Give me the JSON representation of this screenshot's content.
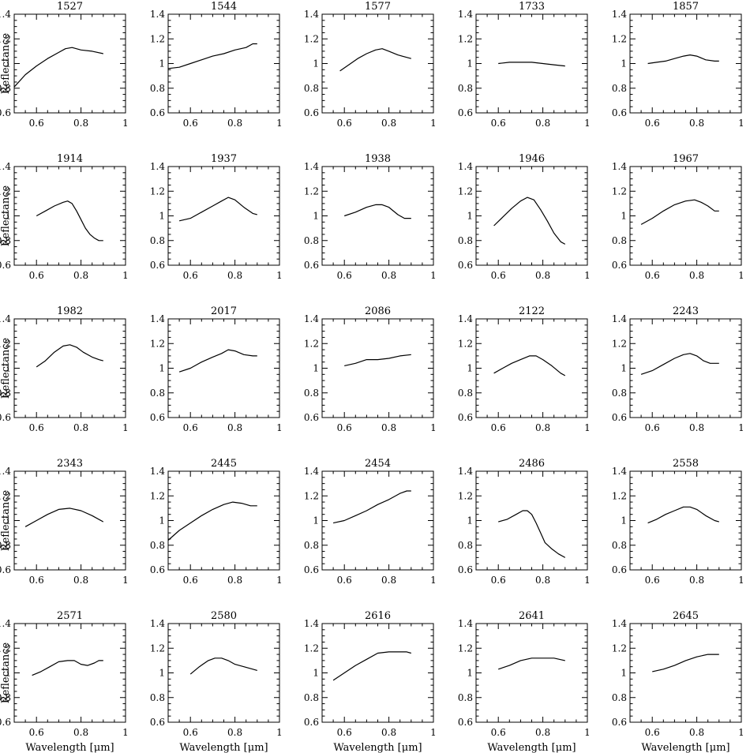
{
  "chart_data": {
    "type": "line",
    "layout": {
      "rows": 5,
      "cols": 5
    },
    "xlabel": "Wavelength [μm]",
    "ylabel": "Reflectance",
    "xlim": [
      0.5,
      1.0
    ],
    "ylim": [
      0.6,
      1.4
    ],
    "xticks": [
      0.6,
      0.8,
      1.0
    ],
    "xtick_labels": [
      "0.6",
      "0.8",
      "1"
    ],
    "yticks": [
      0.6,
      0.8,
      1.0,
      1.2,
      1.4
    ],
    "ytick_labels": [
      "0.6",
      "0.8",
      "1",
      "1.2",
      "1.4"
    ],
    "panels": [
      {
        "title": "1527",
        "x": [
          0.5,
          0.55,
          0.6,
          0.65,
          0.7,
          0.73,
          0.76,
          0.8,
          0.85,
          0.9
        ],
        "y": [
          0.81,
          0.91,
          0.98,
          1.04,
          1.09,
          1.12,
          1.13,
          1.11,
          1.1,
          1.08
        ]
      },
      {
        "title": "1544",
        "x": [
          0.5,
          0.55,
          0.6,
          0.65,
          0.7,
          0.75,
          0.8,
          0.85,
          0.88,
          0.9
        ],
        "y": [
          0.96,
          0.97,
          1.0,
          1.03,
          1.06,
          1.08,
          1.11,
          1.13,
          1.16,
          1.16
        ]
      },
      {
        "title": "1577",
        "x": [
          0.58,
          0.62,
          0.66,
          0.7,
          0.74,
          0.77,
          0.8,
          0.84,
          0.88,
          0.9
        ],
        "y": [
          0.94,
          0.99,
          1.04,
          1.08,
          1.11,
          1.12,
          1.1,
          1.07,
          1.05,
          1.04
        ]
      },
      {
        "title": "1733",
        "x": [
          0.6,
          0.65,
          0.7,
          0.75,
          0.8,
          0.85,
          0.9
        ],
        "y": [
          1.0,
          1.01,
          1.01,
          1.01,
          1.0,
          0.99,
          0.98
        ]
      },
      {
        "title": "1857",
        "x": [
          0.58,
          0.62,
          0.66,
          0.7,
          0.74,
          0.77,
          0.8,
          0.84,
          0.88,
          0.9
        ],
        "y": [
          1.0,
          1.01,
          1.02,
          1.04,
          1.06,
          1.07,
          1.06,
          1.03,
          1.02,
          1.02
        ]
      },
      {
        "title": "1914",
        "x": [
          0.6,
          0.64,
          0.68,
          0.72,
          0.74,
          0.76,
          0.78,
          0.8,
          0.82,
          0.84,
          0.86,
          0.88,
          0.9
        ],
        "y": [
          1.0,
          1.04,
          1.08,
          1.11,
          1.12,
          1.1,
          1.04,
          0.97,
          0.9,
          0.85,
          0.82,
          0.8,
          0.8
        ]
      },
      {
        "title": "1937",
        "x": [
          0.55,
          0.6,
          0.65,
          0.7,
          0.74,
          0.77,
          0.8,
          0.84,
          0.88,
          0.9
        ],
        "y": [
          0.96,
          0.98,
          1.03,
          1.08,
          1.12,
          1.15,
          1.13,
          1.07,
          1.02,
          1.01
        ]
      },
      {
        "title": "1938",
        "x": [
          0.6,
          0.65,
          0.7,
          0.74,
          0.77,
          0.8,
          0.84,
          0.87,
          0.9
        ],
        "y": [
          1.0,
          1.03,
          1.07,
          1.09,
          1.09,
          1.07,
          1.01,
          0.98,
          0.98
        ]
      },
      {
        "title": "1946",
        "x": [
          0.58,
          0.62,
          0.66,
          0.7,
          0.73,
          0.76,
          0.79,
          0.82,
          0.85,
          0.88,
          0.9
        ],
        "y": [
          0.92,
          0.99,
          1.06,
          1.12,
          1.15,
          1.13,
          1.05,
          0.96,
          0.86,
          0.79,
          0.77
        ]
      },
      {
        "title": "1967",
        "x": [
          0.55,
          0.6,
          0.65,
          0.7,
          0.75,
          0.79,
          0.82,
          0.85,
          0.88,
          0.9
        ],
        "y": [
          0.93,
          0.98,
          1.04,
          1.09,
          1.12,
          1.13,
          1.11,
          1.08,
          1.04,
          1.04
        ]
      },
      {
        "title": "1982",
        "x": [
          0.6,
          0.64,
          0.68,
          0.72,
          0.75,
          0.78,
          0.81,
          0.85,
          0.88,
          0.9
        ],
        "y": [
          1.01,
          1.06,
          1.13,
          1.18,
          1.19,
          1.17,
          1.13,
          1.09,
          1.07,
          1.06
        ]
      },
      {
        "title": "2017",
        "x": [
          0.55,
          0.6,
          0.65,
          0.7,
          0.74,
          0.77,
          0.8,
          0.84,
          0.88,
          0.9
        ],
        "y": [
          0.97,
          1.0,
          1.05,
          1.09,
          1.12,
          1.15,
          1.14,
          1.11,
          1.1,
          1.1
        ]
      },
      {
        "title": "2086",
        "x": [
          0.6,
          0.65,
          0.7,
          0.75,
          0.8,
          0.85,
          0.9
        ],
        "y": [
          1.02,
          1.04,
          1.07,
          1.07,
          1.08,
          1.1,
          1.11
        ]
      },
      {
        "title": "2122",
        "x": [
          0.58,
          0.62,
          0.66,
          0.7,
          0.74,
          0.77,
          0.8,
          0.84,
          0.88,
          0.9
        ],
        "y": [
          0.96,
          1.0,
          1.04,
          1.07,
          1.1,
          1.1,
          1.07,
          1.02,
          0.96,
          0.94
        ]
      },
      {
        "title": "2243",
        "x": [
          0.55,
          0.6,
          0.65,
          0.7,
          0.74,
          0.77,
          0.8,
          0.83,
          0.86,
          0.9
        ],
        "y": [
          0.95,
          0.98,
          1.03,
          1.08,
          1.11,
          1.12,
          1.1,
          1.06,
          1.04,
          1.04
        ]
      },
      {
        "title": "2343",
        "x": [
          0.55,
          0.6,
          0.65,
          0.7,
          0.75,
          0.8,
          0.85,
          0.9
        ],
        "y": [
          0.95,
          1.0,
          1.05,
          1.09,
          1.1,
          1.08,
          1.04,
          0.99
        ]
      },
      {
        "title": "2445",
        "x": [
          0.5,
          0.55,
          0.6,
          0.65,
          0.7,
          0.75,
          0.79,
          0.83,
          0.87,
          0.9
        ],
        "y": [
          0.84,
          0.92,
          0.98,
          1.04,
          1.09,
          1.13,
          1.15,
          1.14,
          1.12,
          1.12
        ]
      },
      {
        "title": "2454",
        "x": [
          0.55,
          0.6,
          0.65,
          0.7,
          0.75,
          0.8,
          0.85,
          0.88,
          0.9
        ],
        "y": [
          0.98,
          1.0,
          1.04,
          1.08,
          1.13,
          1.17,
          1.22,
          1.24,
          1.24
        ]
      },
      {
        "title": "2486",
        "x": [
          0.6,
          0.64,
          0.68,
          0.71,
          0.73,
          0.75,
          0.77,
          0.79,
          0.81,
          0.84,
          0.87,
          0.9
        ],
        "y": [
          0.99,
          1.01,
          1.05,
          1.08,
          1.08,
          1.05,
          0.98,
          0.9,
          0.82,
          0.77,
          0.73,
          0.7
        ]
      },
      {
        "title": "2558",
        "x": [
          0.58,
          0.62,
          0.66,
          0.7,
          0.74,
          0.77,
          0.8,
          0.84,
          0.88,
          0.9
        ],
        "y": [
          0.98,
          1.01,
          1.05,
          1.08,
          1.11,
          1.11,
          1.09,
          1.04,
          1.0,
          0.99
        ]
      },
      {
        "title": "2571",
        "x": [
          0.58,
          0.62,
          0.66,
          0.7,
          0.74,
          0.77,
          0.8,
          0.83,
          0.86,
          0.88,
          0.9
        ],
        "y": [
          0.98,
          1.01,
          1.05,
          1.09,
          1.1,
          1.1,
          1.07,
          1.06,
          1.08,
          1.1,
          1.1
        ]
      },
      {
        "title": "2580",
        "x": [
          0.6,
          0.64,
          0.68,
          0.71,
          0.74,
          0.77,
          0.8,
          0.84,
          0.88,
          0.9
        ],
        "y": [
          0.99,
          1.05,
          1.1,
          1.12,
          1.12,
          1.1,
          1.07,
          1.05,
          1.03,
          1.02
        ]
      },
      {
        "title": "2616",
        "x": [
          0.55,
          0.6,
          0.65,
          0.7,
          0.75,
          0.8,
          0.85,
          0.88,
          0.9
        ],
        "y": [
          0.94,
          1.0,
          1.06,
          1.11,
          1.16,
          1.17,
          1.17,
          1.17,
          1.16
        ]
      },
      {
        "title": "2641",
        "x": [
          0.6,
          0.65,
          0.7,
          0.75,
          0.8,
          0.85,
          0.9
        ],
        "y": [
          1.03,
          1.06,
          1.1,
          1.12,
          1.12,
          1.12,
          1.1
        ]
      },
      {
        "title": "2645",
        "x": [
          0.6,
          0.65,
          0.7,
          0.75,
          0.8,
          0.85,
          0.9
        ],
        "y": [
          1.01,
          1.03,
          1.06,
          1.1,
          1.13,
          1.15,
          1.15
        ]
      }
    ]
  }
}
